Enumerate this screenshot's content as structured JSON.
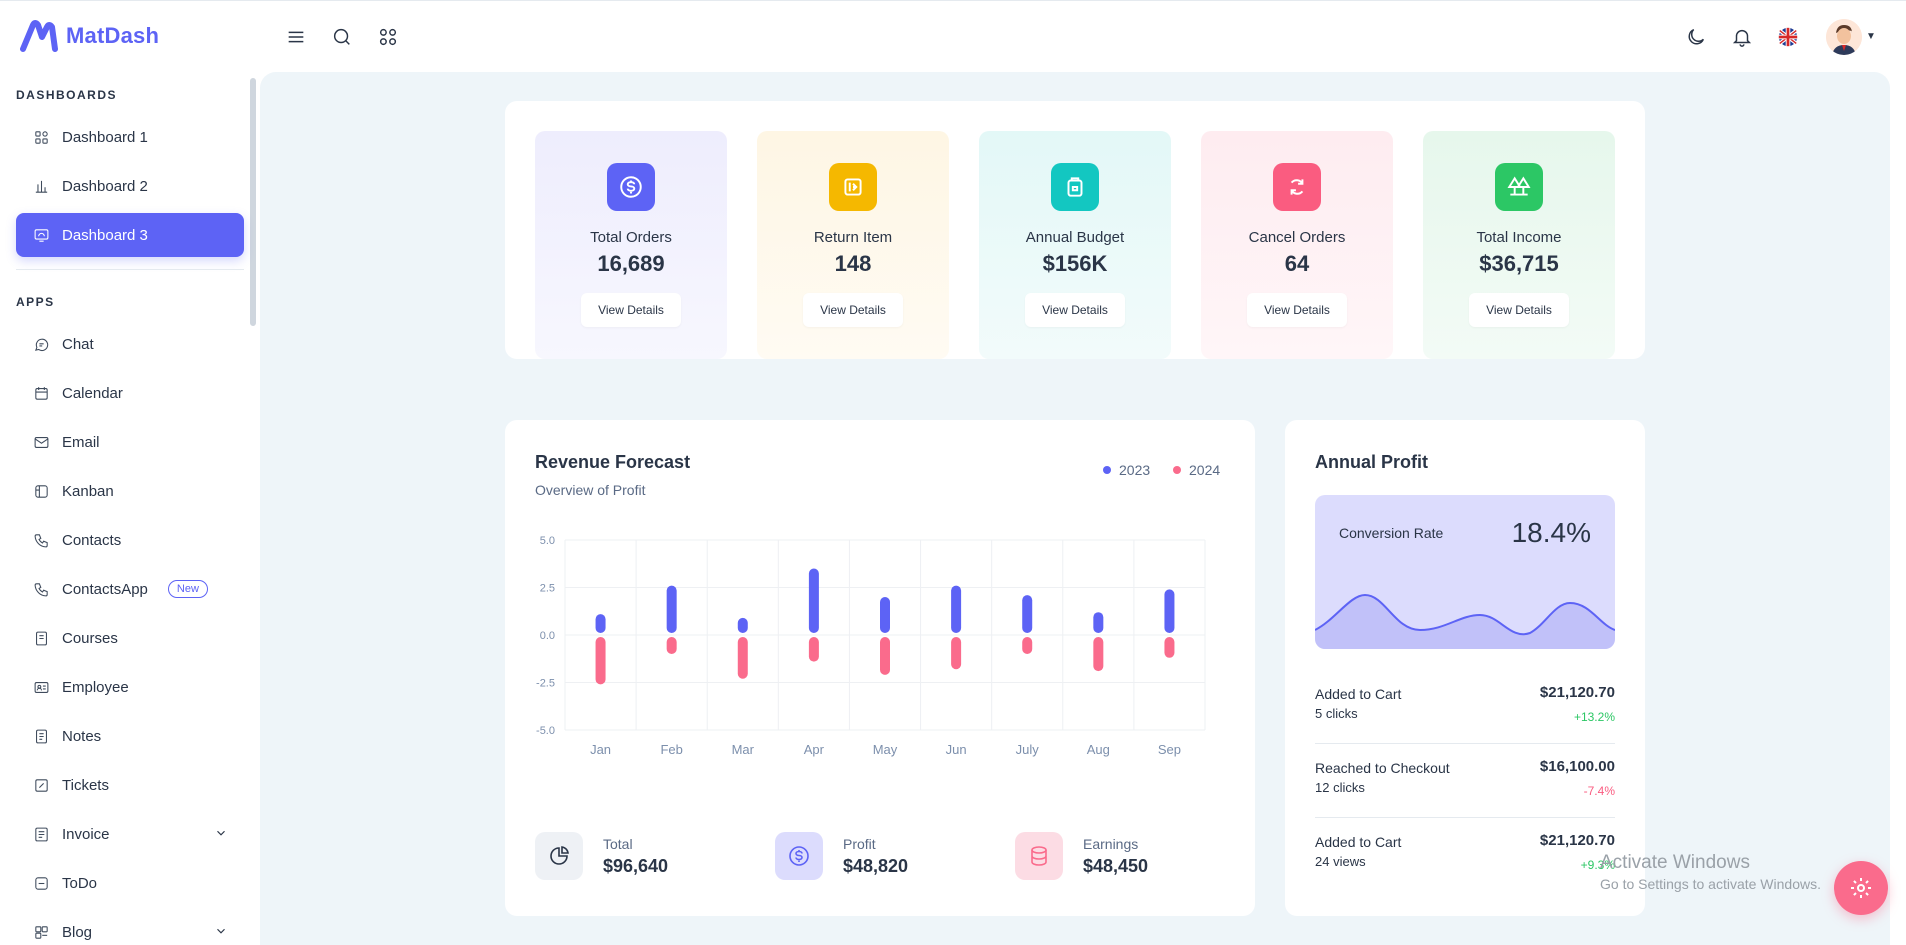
{
  "brand": {
    "name": "MatDash",
    "color": "#5d63f5"
  },
  "sidebar": {
    "sections": [
      {
        "title": "DASHBOARDS"
      },
      {
        "title": "APPS"
      }
    ],
    "dashboards": [
      {
        "label": "Dashboard 1",
        "icon": "apps-icon"
      },
      {
        "label": "Dashboard 2",
        "icon": "chart-bar-icon"
      },
      {
        "label": "Dashboard 3",
        "icon": "screen-icon",
        "active": true
      }
    ],
    "apps": [
      {
        "label": "Chat",
        "icon": "chat-icon"
      },
      {
        "label": "Calendar",
        "icon": "calendar-icon"
      },
      {
        "label": "Email",
        "icon": "email-icon"
      },
      {
        "label": "Kanban",
        "icon": "kanban-icon"
      },
      {
        "label": "Contacts",
        "icon": "phone-icon"
      },
      {
        "label": "ContactsApp",
        "icon": "phone-icon",
        "badge": "New"
      },
      {
        "label": "Courses",
        "icon": "book-icon"
      },
      {
        "label": "Employee",
        "icon": "id-card-icon"
      },
      {
        "label": "Notes",
        "icon": "notes-icon"
      },
      {
        "label": "Tickets",
        "icon": "ticket-icon"
      },
      {
        "label": "Invoice",
        "icon": "invoice-icon",
        "expandable": true
      },
      {
        "label": "ToDo",
        "icon": "todo-icon"
      },
      {
        "label": "Blog",
        "icon": "blog-icon",
        "expandable": true
      }
    ]
  },
  "stats": [
    {
      "label": "Total Orders",
      "value": "16,689",
      "button": "View Details",
      "icon": "dollar-icon",
      "color": "#5d63f5",
      "bg": "#eeedfd"
    },
    {
      "label": "Return Item",
      "value": "148",
      "button": "View Details",
      "icon": "return-icon",
      "color": "#f5b800",
      "bg": "#fef6e4"
    },
    {
      "label": "Annual Budget",
      "value": "$156K",
      "button": "View Details",
      "icon": "wallet-icon",
      "color": "#13c7c1",
      "bg": "#e3f8f7"
    },
    {
      "label": "Cancel Orders",
      "value": "64",
      "button": "View Details",
      "icon": "refresh-icon",
      "color": "#fa5c80",
      "bg": "#feecf0"
    },
    {
      "label": "Total Income",
      "value": "$36,715",
      "button": "View Details",
      "icon": "trees-icon",
      "color": "#2cc765",
      "bg": "#e6f7ec"
    }
  ],
  "revenue": {
    "title": "Revenue Forecast",
    "subtitle": "Overview of Profit",
    "legend": [
      {
        "label": "2023",
        "color": "#5d63f5"
      },
      {
        "label": "2024",
        "color": "#fa6b8c"
      }
    ],
    "footer": [
      {
        "label": "Total",
        "value": "$96,640",
        "icon": "pie-icon",
        "bg": "#eef1f5",
        "color": "#2a3547"
      },
      {
        "label": "Profit",
        "value": "$48,820",
        "icon": "dollar-icon",
        "bg": "#dcdcfd",
        "color": "#5d63f5"
      },
      {
        "label": "Earnings",
        "value": "$48,450",
        "icon": "database-icon",
        "bg": "#fcdce4",
        "color": "#fa6b8c"
      }
    ]
  },
  "chart_data": {
    "type": "bar",
    "title": "Revenue Forecast",
    "categories": [
      "Jan",
      "Feb",
      "Mar",
      "Apr",
      "May",
      "Jun",
      "July",
      "Aug",
      "Sep"
    ],
    "series": [
      {
        "name": "2023",
        "values": [
          1.1,
          2.6,
          0.9,
          3.5,
          2.0,
          2.6,
          2.1,
          1.2,
          2.4
        ],
        "color": "#5d63f5"
      },
      {
        "name": "2024",
        "values": [
          -2.6,
          -1.0,
          -2.3,
          -1.4,
          -2.1,
          -1.8,
          -1.0,
          -1.9,
          -1.2
        ],
        "color": "#fa6b8c"
      }
    ],
    "yticks": [
      "5.0",
      "2.5",
      "0.0",
      "-2.5",
      "-5.0"
    ],
    "ylim": [
      -5,
      5
    ],
    "grid": true
  },
  "profit": {
    "title": "Annual Profit",
    "conversion_label": "Conversion Rate",
    "conversion_value": "18.4%",
    "rows": [
      {
        "label": "Added to Cart",
        "sub": "5 clicks",
        "amount": "$21,120.70",
        "pct": "+13.2%",
        "pct_color": "#2cc765"
      },
      {
        "label": "Reached to Checkout",
        "sub": "12 clicks",
        "amount": "$16,100.00",
        "pct": "-7.4%",
        "pct_color": "#fa5c80"
      },
      {
        "label": "Added to Cart",
        "sub": "24 views",
        "amount": "$21,120.70",
        "pct": "+9.3%",
        "pct_color": "#2cc765"
      }
    ]
  },
  "overlay": {
    "watermark_title": "Activate Windows",
    "watermark_sub": "Go to Settings to activate Windows."
  }
}
